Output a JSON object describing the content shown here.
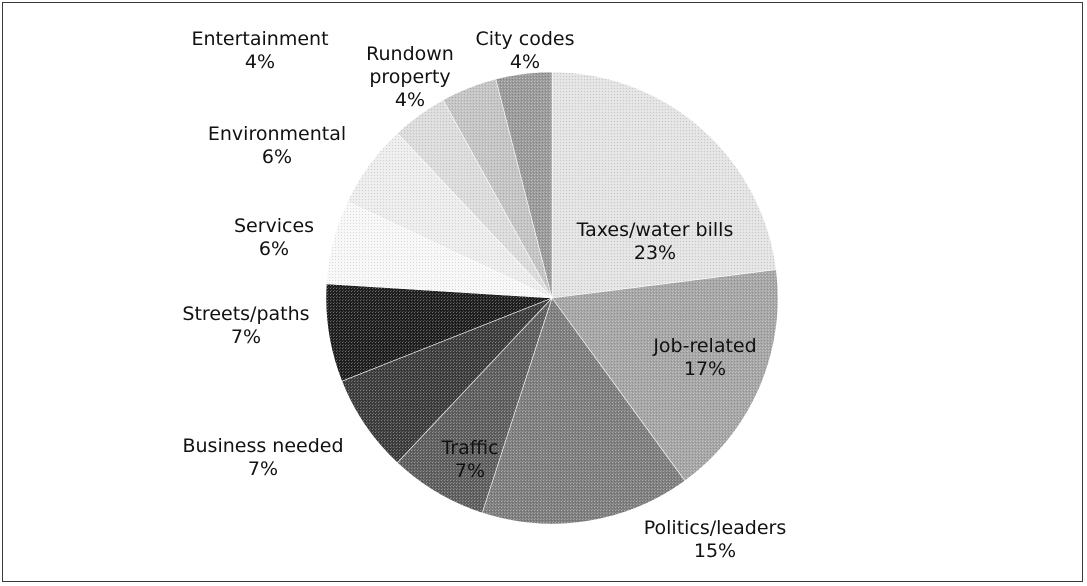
{
  "chart_data": {
    "type": "pie",
    "title": "",
    "slices": [
      {
        "label_lines": [
          "Taxes/water bills",
          "23%"
        ],
        "value": 23,
        "color": "#e3e3e3"
      },
      {
        "label_lines": [
          "Job-related",
          "17%"
        ],
        "value": 17,
        "color": "#a5a5a5"
      },
      {
        "label_lines": [
          "Politics/leaders",
          "15%"
        ],
        "value": 15,
        "color": "#7e7e7e"
      },
      {
        "label_lines": [
          "Traffic",
          "7%"
        ],
        "value": 7,
        "color": "#5e5e5e"
      },
      {
        "label_lines": [
          "Business needed",
          "7%"
        ],
        "value": 7,
        "color": "#3c3c3c"
      },
      {
        "label_lines": [
          "Streets/paths",
          "7%"
        ],
        "value": 7,
        "color": "#1f1f1f"
      },
      {
        "label_lines": [
          "Services",
          "6%"
        ],
        "value": 6,
        "color": "#f7f7f7"
      },
      {
        "label_lines": [
          "Environmental",
          "6%"
        ],
        "value": 6,
        "color": "#ededed"
      },
      {
        "label_lines": [
          "Entertainment",
          "4%"
        ],
        "value": 4,
        "color": "#dcdcdc"
      },
      {
        "label_lines": [
          "Rundown",
          "property",
          "4%"
        ],
        "value": 4,
        "color": "#c4c4c4"
      },
      {
        "label_lines": [
          "City codes",
          "4%"
        ],
        "value": 4,
        "color": "#9a9a9a"
      }
    ]
  }
}
